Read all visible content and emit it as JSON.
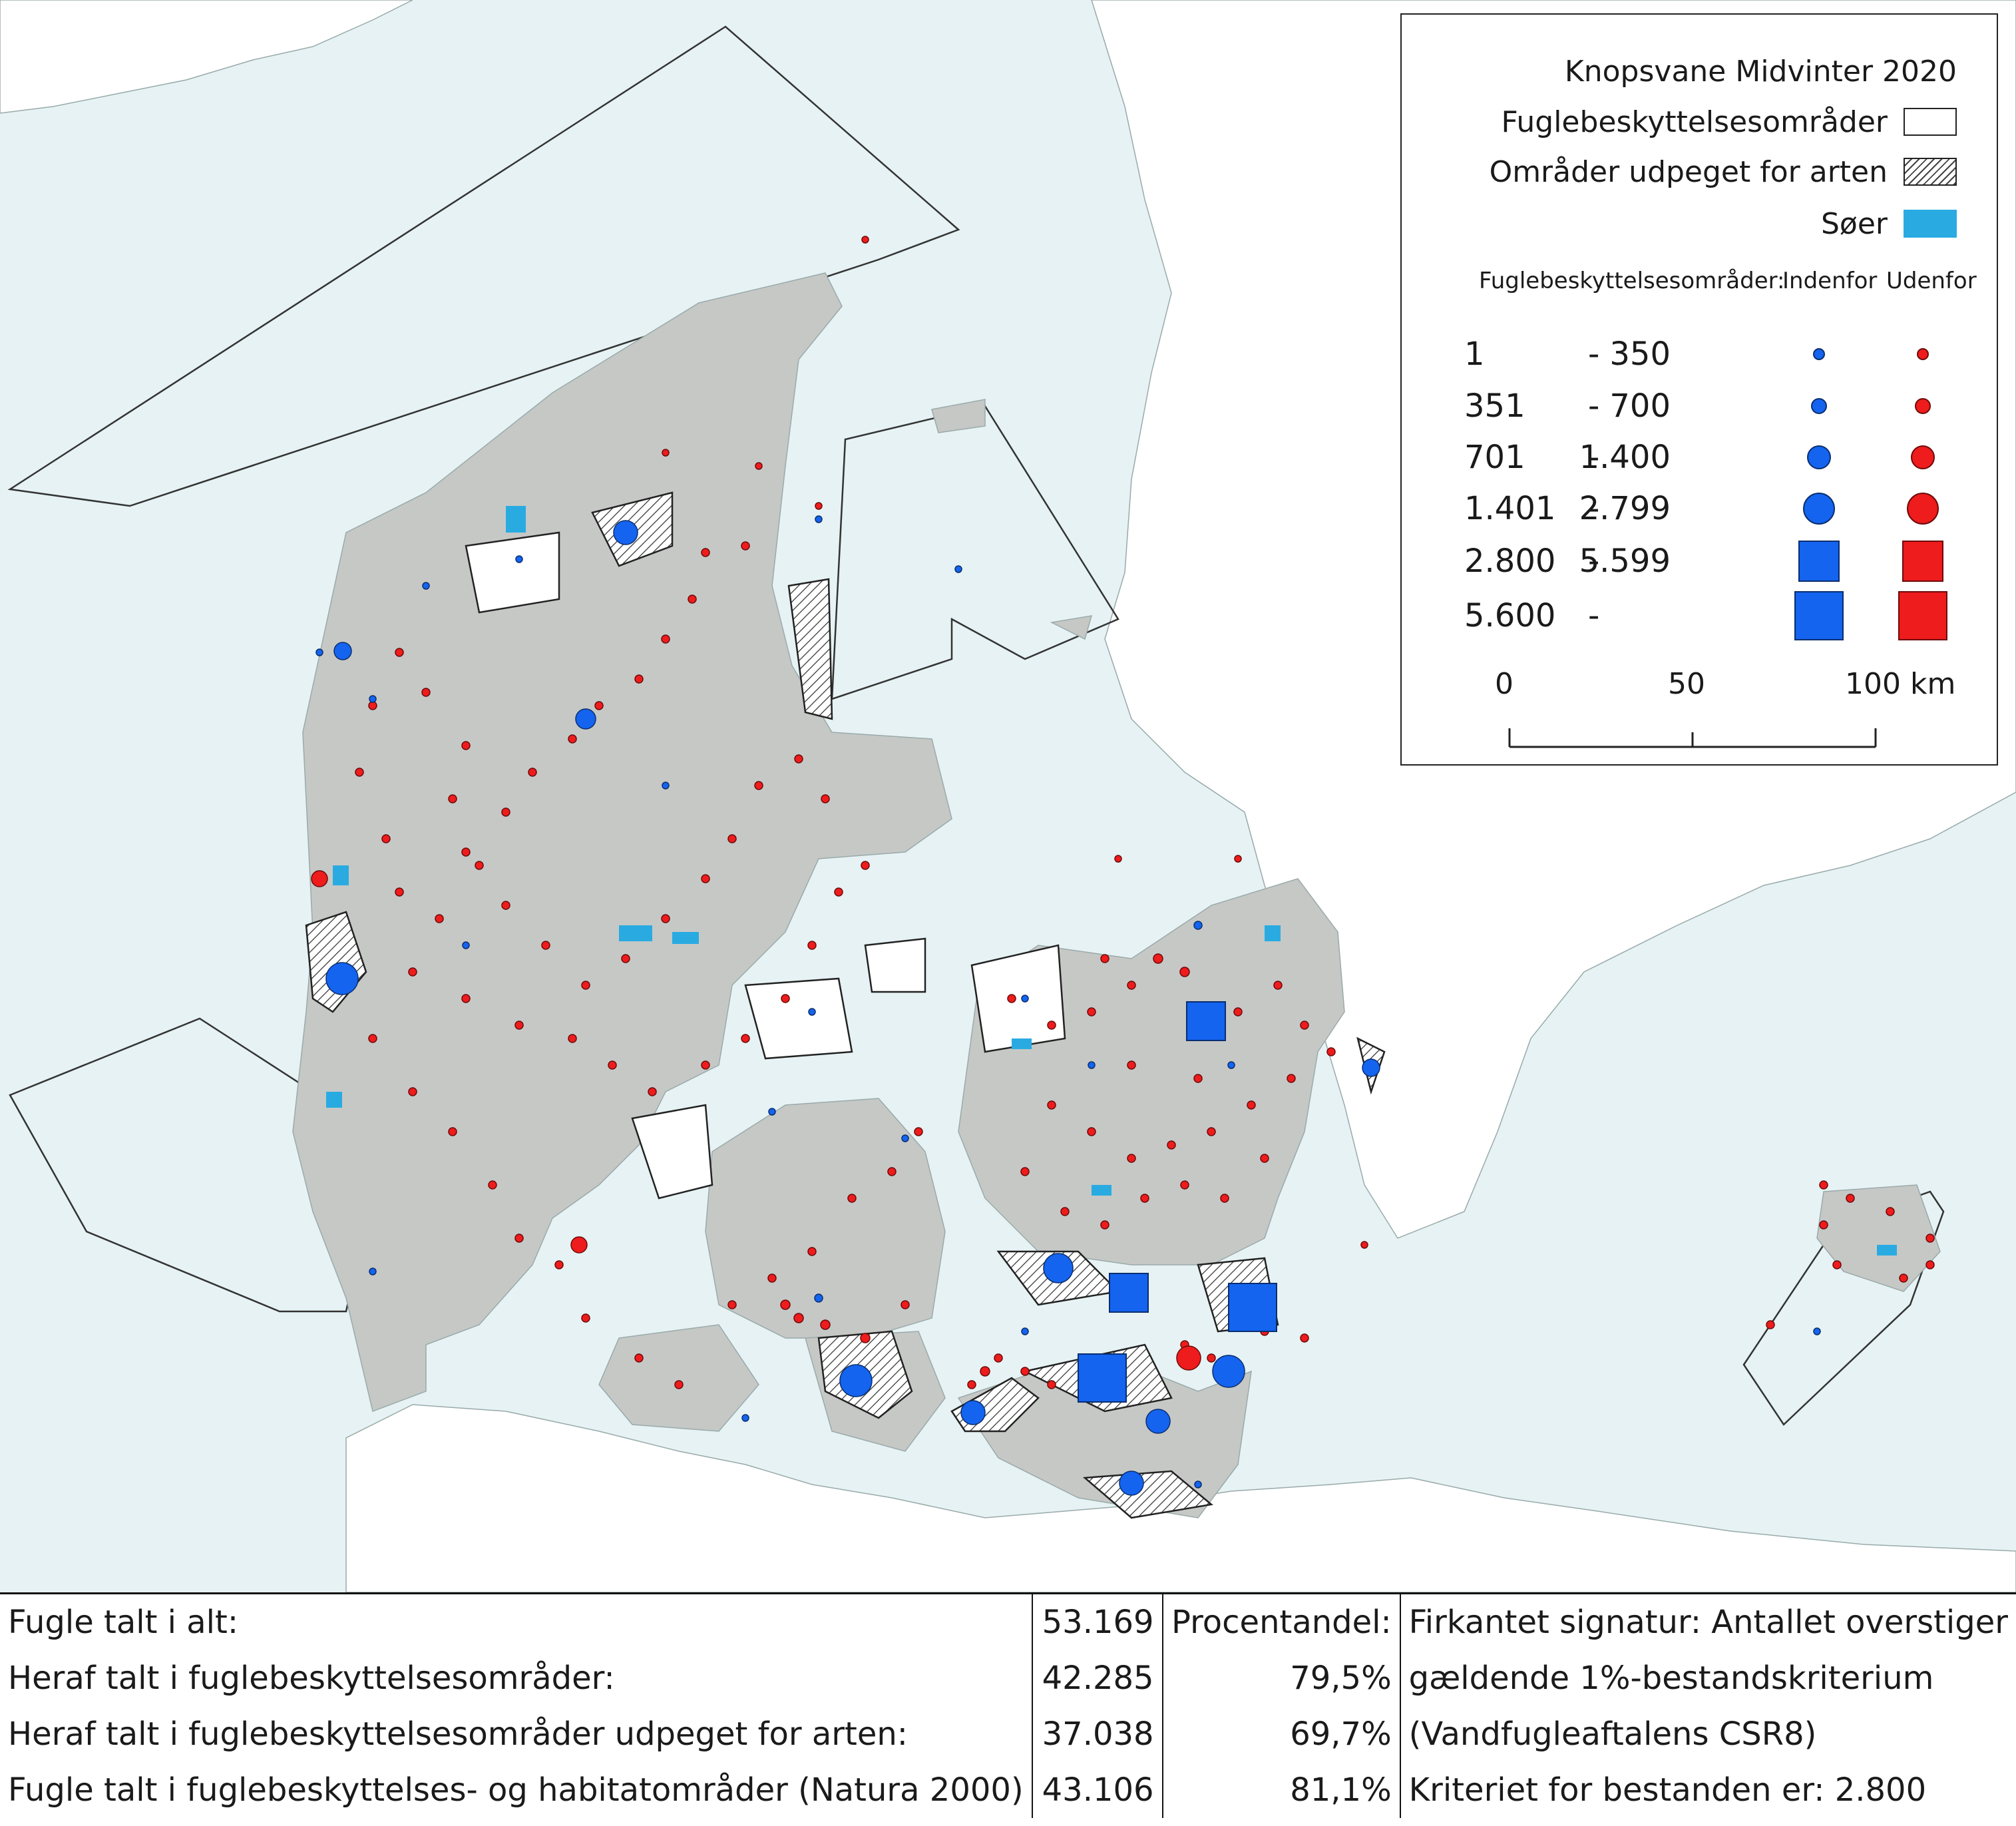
{
  "map": {
    "legend": {
      "title": "Knopsvane Midvinter 2020",
      "layers": [
        {
          "label": "Fuglebeskyttelsesområder",
          "symbol": "white-box"
        },
        {
          "label": "Områder udpeget for arten",
          "symbol": "hatched-box"
        },
        {
          "label": "Søer",
          "symbol": "lake-fill",
          "color": "#29abe2"
        }
      ],
      "header": {
        "label": "Fuglebeskyttelsesområder:",
        "inside": "Indenfor",
        "outside": "Udenfor"
      },
      "classes": [
        {
          "from": "1",
          "dash": "-",
          "to": "350",
          "shape": "circle"
        },
        {
          "from": "351",
          "dash": "-",
          "to": "700",
          "shape": "circle"
        },
        {
          "from": "701",
          "dash": "-",
          "to": "1.400",
          "shape": "circle"
        },
        {
          "from": "1.401",
          "dash": "-",
          "to": "2.799",
          "shape": "circle"
        },
        {
          "from": "2.800",
          "dash": "-",
          "to": "5.599",
          "shape": "square"
        },
        {
          "from": "5.600",
          "dash": "-",
          "to": "",
          "shape": "square"
        }
      ],
      "colors": {
        "inside": "#1464f0",
        "outside": "#ee1c1c"
      },
      "scalebar": {
        "labels": [
          "0",
          "50",
          "100 km"
        ]
      }
    }
  },
  "stats": {
    "rows": [
      {
        "label": "Fugle talt i alt:",
        "value": "53.169",
        "pct": "Procentandel:",
        "note": "Firkantet signatur: Antallet overstiger"
      },
      {
        "label": "Heraf talt i fuglebeskyttelsesområder:",
        "value": "42.285",
        "pct": "79,5%",
        "note": "gældende 1%-bestandskriterium"
      },
      {
        "label": "Heraf talt i fuglebeskyttelsesområder udpeget for arten:",
        "value": "37.038",
        "pct": "69,7%",
        "note": "(Vandfugleaftalens CSR8)"
      },
      {
        "label": "Fugle talt i fuglebeskyttelses- og habitatområder (Natura 2000)",
        "value": "43.106",
        "pct": "81,1%",
        "note": "Kriteriet for bestanden er: 2.800"
      }
    ]
  }
}
